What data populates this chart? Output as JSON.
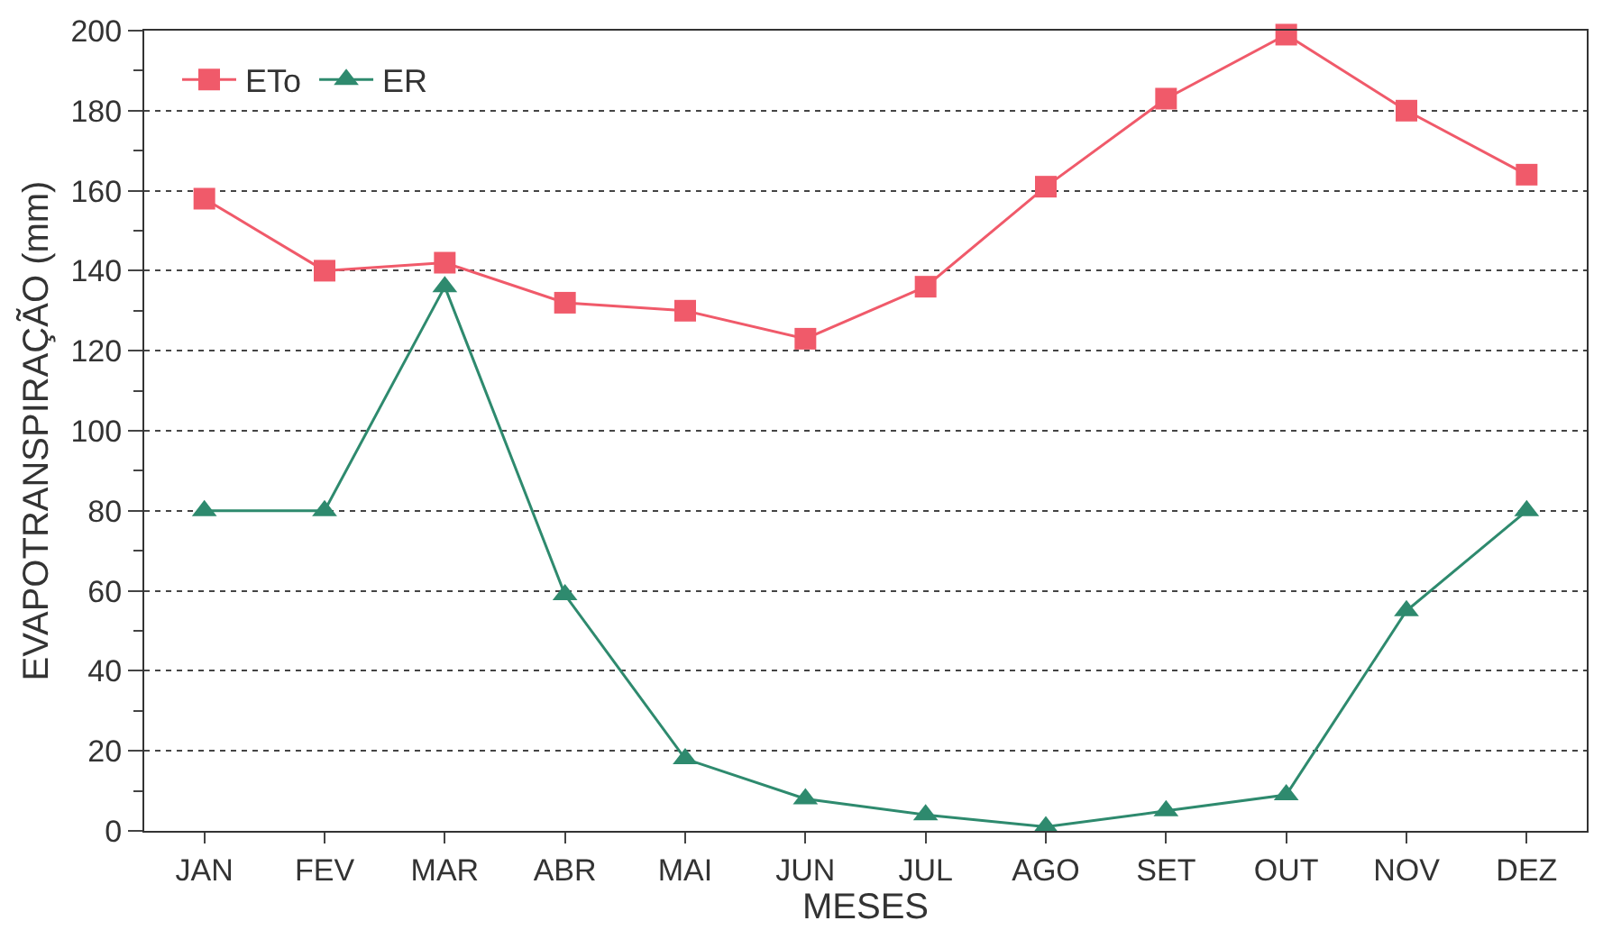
{
  "chart_data": {
    "type": "line",
    "xlabel": "MESES",
    "ylabel": "EVAPOTRANSPIRAÇÃO (mm)",
    "categories": [
      "JAN",
      "FEV",
      "MAR",
      "ABR",
      "MAI",
      "JUN",
      "JUL",
      "AGO",
      "SET",
      "OUT",
      "NOV",
      "DEZ"
    ],
    "series": [
      {
        "name": "ETo",
        "color": "#f05a6a",
        "marker": "square",
        "values": [
          158,
          140,
          142,
          132,
          130,
          123,
          136,
          161,
          183,
          199,
          180,
          164
        ]
      },
      {
        "name": "ER",
        "color": "#2e8a6e",
        "marker": "triangle",
        "values": [
          80,
          80,
          136,
          59,
          18,
          8,
          4,
          1,
          5,
          9,
          55,
          80
        ]
      }
    ],
    "ylim": [
      0,
      200
    ],
    "yticks": [
      0,
      {
        "value": 10,
        "label": null
      },
      20,
      {
        "value": 30,
        "label": null
      },
      40,
      {
        "value": 50,
        "label": null
      },
      60,
      {
        "value": 70,
        "label": null
      },
      80,
      {
        "value": 90,
        "label": null
      },
      100,
      {
        "value": 110,
        "label": null
      },
      120,
      {
        "value": 130,
        "label": null
      },
      140,
      {
        "value": 150,
        "label": null
      },
      160,
      {
        "value": 170,
        "label": null
      },
      180,
      {
        "value": 190,
        "label": null
      },
      200
    ],
    "grid": "y",
    "legend": "top left",
    "line_style": "solid"
  }
}
